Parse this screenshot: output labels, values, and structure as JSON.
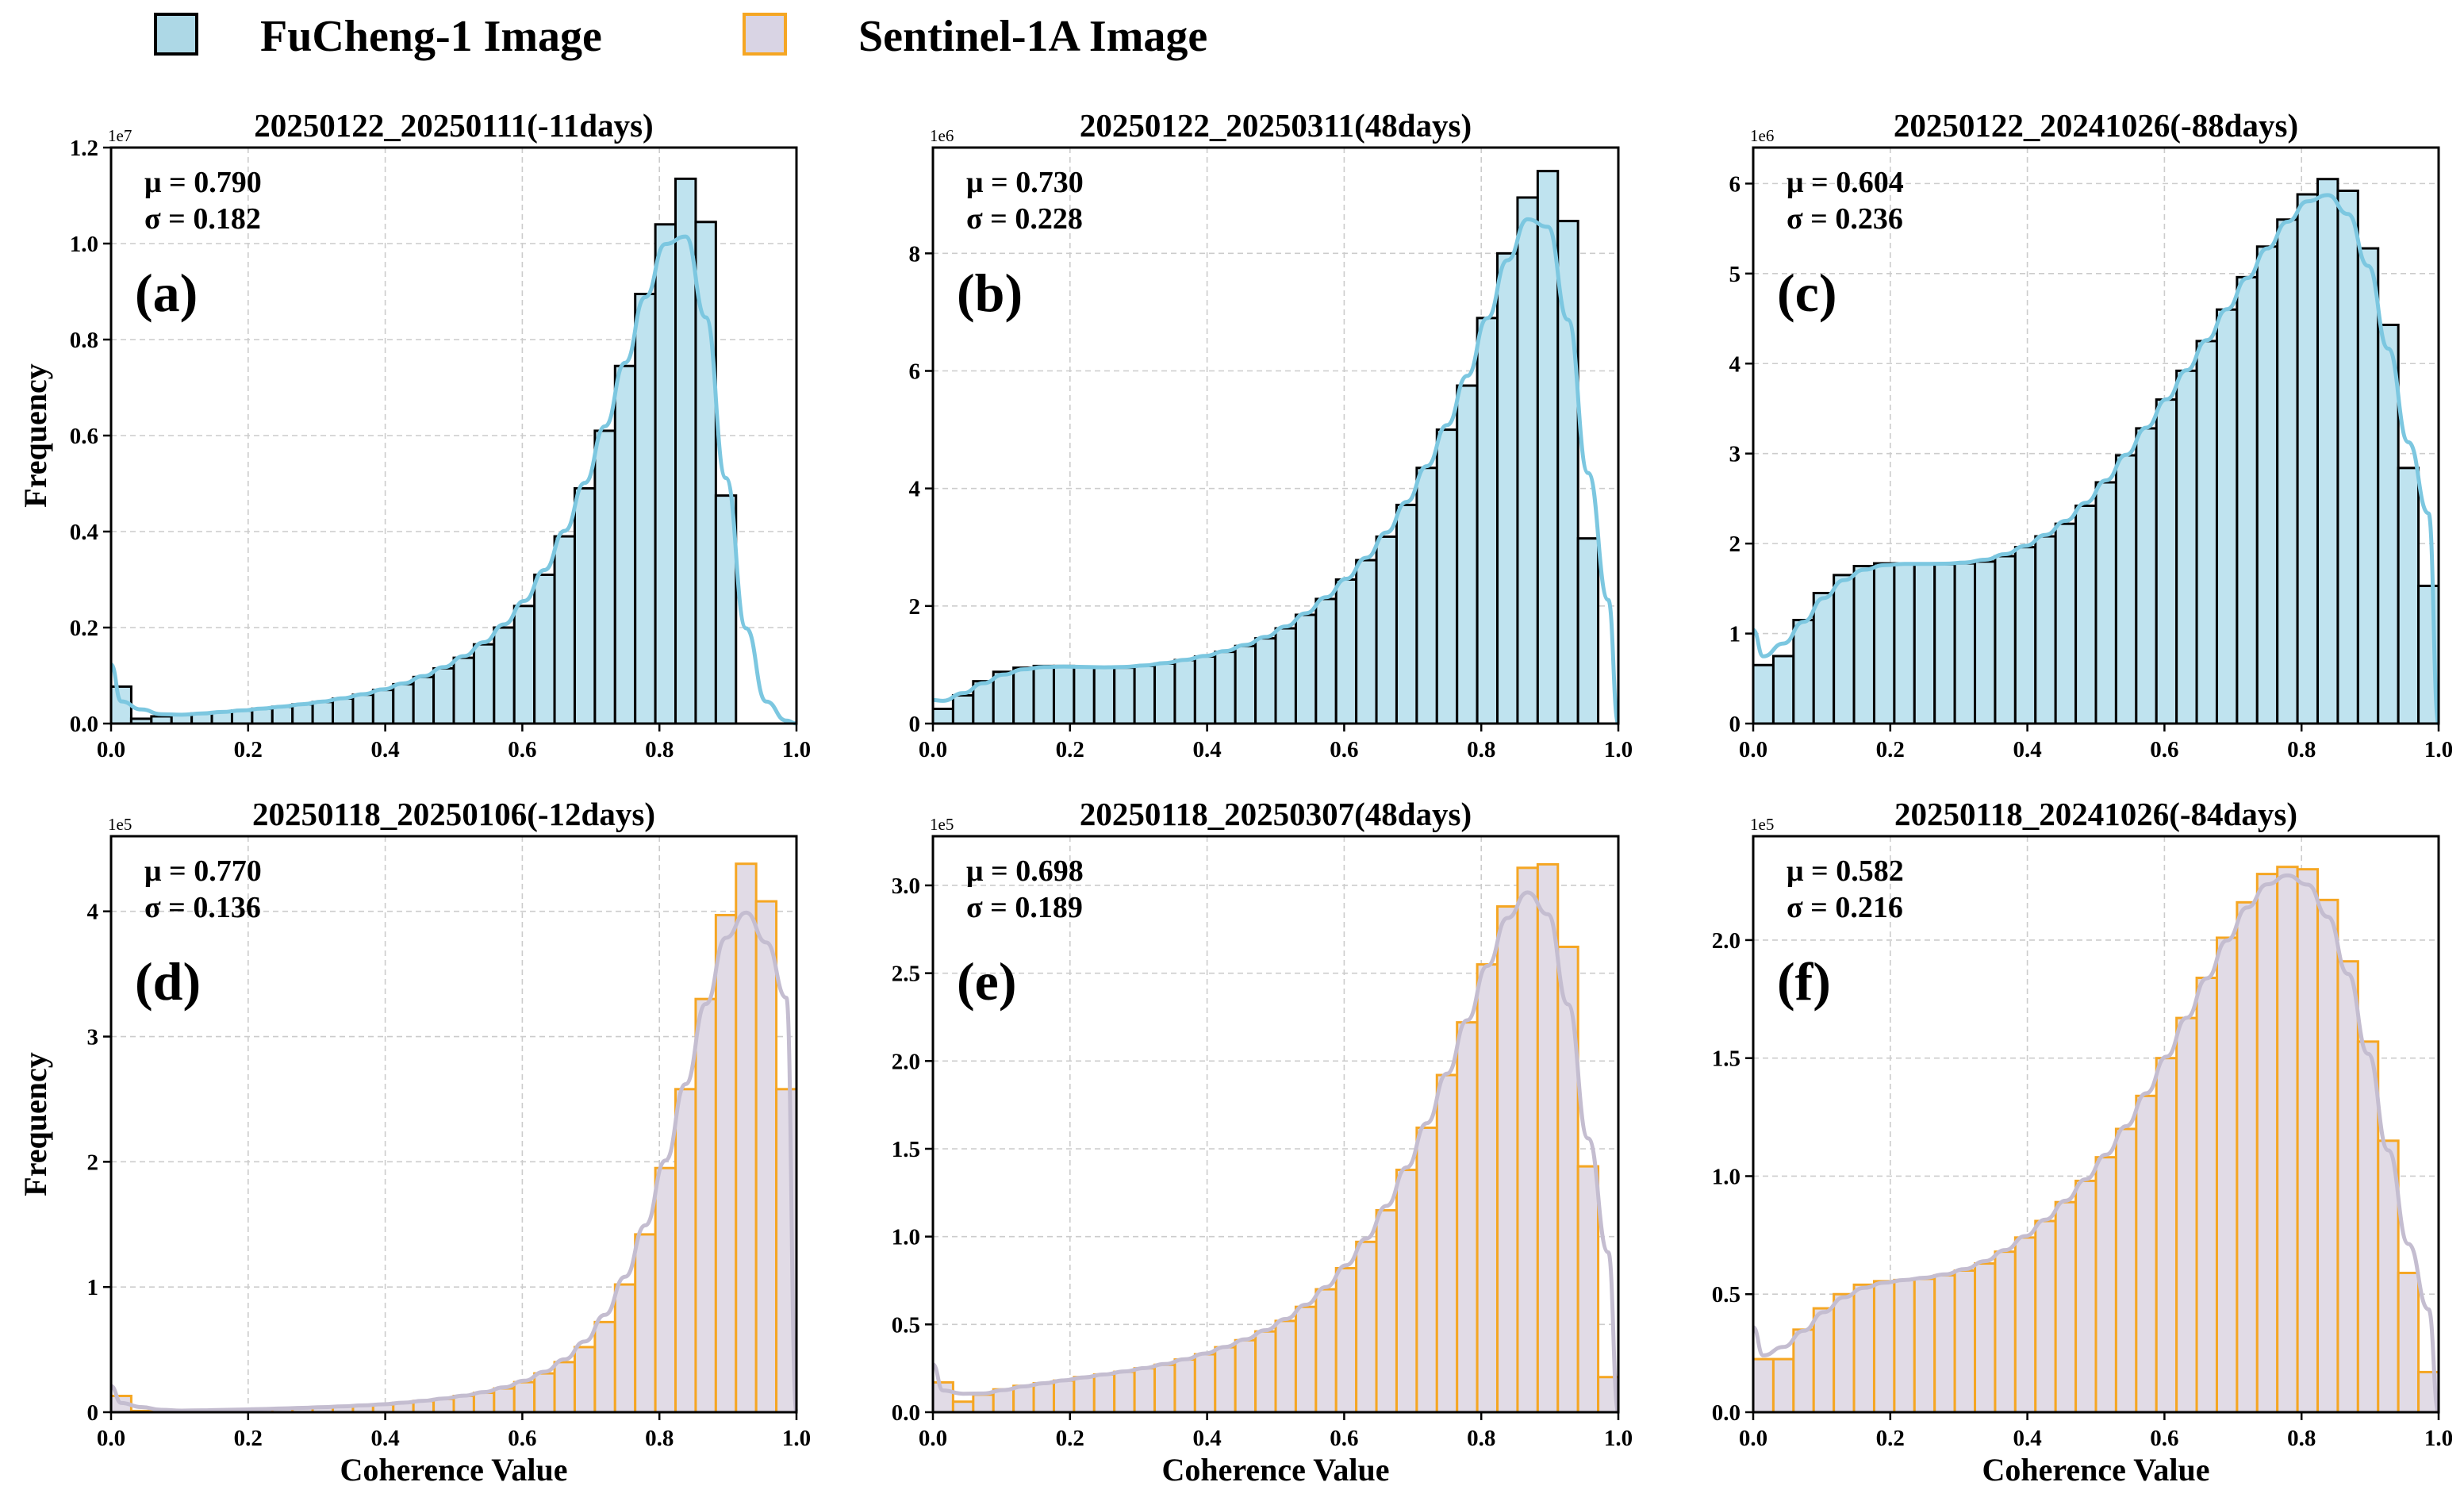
{
  "legend": {
    "fucheng": {
      "label": "FuCheng-1 Image",
      "fill": "#add8e6",
      "edge": "#000000"
    },
    "sentinel": {
      "label": "Sentinel-1A Image",
      "fill": "#d9d4e4",
      "edge": "#f5a623"
    }
  },
  "colors": {
    "fucheng_fill": "#bfe3ef",
    "fucheng_edge": "#000000",
    "fucheng_kde": "#7cc7e0",
    "sentinel_fill": "#e1dbe6",
    "sentinel_edge": "#f5a623",
    "sentinel_kde": "#c4bdd0",
    "grid": "#cccccc"
  },
  "chart_data": [
    {
      "type": "histogram",
      "sensor": "fucheng",
      "title": "20250122_20250111(-11days)",
      "panel_label": "(a)",
      "mu": "μ = 0.790",
      "sigma": "σ = 0.182",
      "scale_label": "1e7",
      "ylabel": "Frequency",
      "xlabel": "",
      "xlim": [
        0,
        1
      ],
      "ylim": [
        0,
        1.2
      ],
      "yticks": [
        0.0,
        0.2,
        0.4,
        0.6,
        0.8,
        1.0,
        1.2
      ],
      "ytick_labels": [
        "0.0",
        "0.2",
        "0.4",
        "0.6",
        "0.8",
        "1.0",
        "1.2"
      ],
      "xticks": [
        0.0,
        0.2,
        0.4,
        0.6,
        0.8,
        1.0
      ],
      "xtick_labels": [
        "0.0",
        "0.2",
        "0.4",
        "0.6",
        "0.8",
        "1.0"
      ],
      "bins": 34,
      "values": [
        0.077,
        0.01,
        0.015,
        0.018,
        0.021,
        0.024,
        0.027,
        0.031,
        0.035,
        0.04,
        0.045,
        0.052,
        0.06,
        0.07,
        0.082,
        0.097,
        0.115,
        0.137,
        0.165,
        0.2,
        0.245,
        0.31,
        0.39,
        0.49,
        0.61,
        0.745,
        0.895,
        1.04,
        1.135,
        1.045,
        0.475,
        0,
        0,
        0
      ]
    },
    {
      "type": "histogram",
      "sensor": "fucheng",
      "title": "20250122_20250311(48days)",
      "panel_label": "(b)",
      "mu": "μ = 0.730",
      "sigma": "σ = 0.228",
      "scale_label": "1e6",
      "ylabel": "",
      "xlabel": "",
      "xlim": [
        0,
        1
      ],
      "ylim": [
        0,
        9.8
      ],
      "yticks": [
        0,
        2,
        4,
        6,
        8
      ],
      "ytick_labels": [
        "0",
        "2",
        "4",
        "6",
        "8"
      ],
      "xticks": [
        0.0,
        0.2,
        0.4,
        0.6,
        0.8,
        1.0
      ],
      "xtick_labels": [
        "0.0",
        "0.2",
        "0.4",
        "0.6",
        "0.8",
        "1.0"
      ],
      "bins": 34,
      "values": [
        0.25,
        0.48,
        0.72,
        0.88,
        0.95,
        0.98,
        0.98,
        0.96,
        0.95,
        0.95,
        0.98,
        1.02,
        1.08,
        1.14,
        1.22,
        1.32,
        1.45,
        1.62,
        1.85,
        2.12,
        2.45,
        2.78,
        3.18,
        3.72,
        4.35,
        5.0,
        5.75,
        6.9,
        8.0,
        8.95,
        9.4,
        8.55,
        3.15,
        0
      ]
    },
    {
      "type": "histogram",
      "sensor": "fucheng",
      "title": "20250122_20241026(-88days)",
      "panel_label": "(c)",
      "mu": "μ = 0.604",
      "sigma": "σ = 0.236",
      "scale_label": "1e6",
      "ylabel": "",
      "xlabel": "",
      "xlim": [
        0,
        1
      ],
      "ylim": [
        0,
        6.4
      ],
      "yticks": [
        0,
        1,
        2,
        3,
        4,
        5,
        6
      ],
      "ytick_labels": [
        "0",
        "1",
        "2",
        "3",
        "4",
        "5",
        "6"
      ],
      "xticks": [
        0.0,
        0.2,
        0.4,
        0.6,
        0.8,
        1.0
      ],
      "xtick_labels": [
        "0.0",
        "0.2",
        "0.4",
        "0.6",
        "0.8",
        "1.0"
      ],
      "bins": 34,
      "values": [
        0.65,
        0.75,
        1.15,
        1.45,
        1.65,
        1.75,
        1.78,
        1.78,
        1.77,
        1.77,
        1.78,
        1.8,
        1.86,
        1.96,
        2.08,
        2.22,
        2.42,
        2.68,
        2.98,
        3.28,
        3.6,
        3.92,
        4.25,
        4.6,
        4.96,
        5.3,
        5.6,
        5.88,
        6.05,
        5.92,
        5.28,
        4.43,
        2.84,
        1.53
      ]
    },
    {
      "type": "histogram",
      "sensor": "sentinel",
      "title": "20250118_20250106(-12days)",
      "panel_label": "(d)",
      "mu": "μ = 0.770",
      "sigma": "σ = 0.136",
      "scale_label": "1e5",
      "ylabel": "Frequency",
      "xlabel": "Coherence Value",
      "xlim": [
        0,
        1
      ],
      "ylim": [
        0,
        4.6
      ],
      "yticks": [
        0,
        1,
        2,
        3,
        4
      ],
      "ytick_labels": [
        "0",
        "1",
        "2",
        "3",
        "4"
      ],
      "xticks": [
        0.0,
        0.2,
        0.4,
        0.6,
        0.8,
        1.0
      ],
      "xtick_labels": [
        "0.0",
        "0.2",
        "0.4",
        "0.6",
        "0.8",
        "1.0"
      ],
      "bins": 34,
      "values": [
        0.13,
        0.01,
        0.01,
        0.01,
        0.015,
        0.02,
        0.02,
        0.025,
        0.03,
        0.035,
        0.04,
        0.045,
        0.055,
        0.06,
        0.075,
        0.09,
        0.105,
        0.13,
        0.155,
        0.19,
        0.24,
        0.31,
        0.4,
        0.52,
        0.72,
        1.02,
        1.42,
        1.95,
        2.58,
        3.3,
        3.97,
        4.38,
        4.08,
        2.58
      ]
    },
    {
      "type": "histogram",
      "sensor": "sentinel",
      "title": "20250118_20250307(48days)",
      "panel_label": "(e)",
      "mu": "μ = 0.698",
      "sigma": "σ = 0.189",
      "scale_label": "1e5",
      "ylabel": "",
      "xlabel": "Coherence Value",
      "xlim": [
        0,
        1
      ],
      "ylim": [
        0,
        3.28
      ],
      "yticks": [
        0.0,
        0.5,
        1.0,
        1.5,
        2.0,
        2.5,
        3.0
      ],
      "ytick_labels": [
        "0.0",
        "0.5",
        "1.0",
        "1.5",
        "2.0",
        "2.5",
        "3.0"
      ],
      "xticks": [
        0.0,
        0.2,
        0.4,
        0.6,
        0.8,
        1.0
      ],
      "xtick_labels": [
        "0.0",
        "0.2",
        "0.4",
        "0.6",
        "0.8",
        "1.0"
      ],
      "bins": 34,
      "values": [
        0.17,
        0.06,
        0.1,
        0.13,
        0.15,
        0.165,
        0.18,
        0.2,
        0.215,
        0.23,
        0.25,
        0.27,
        0.3,
        0.33,
        0.37,
        0.41,
        0.46,
        0.52,
        0.6,
        0.7,
        0.82,
        0.97,
        1.15,
        1.38,
        1.62,
        1.92,
        2.22,
        2.55,
        2.88,
        3.1,
        3.12,
        2.65,
        1.4,
        0.2
      ]
    },
    {
      "type": "histogram",
      "sensor": "sentinel",
      "title": "20250118_20241026(-84days)",
      "panel_label": "(f)",
      "mu": "μ = 0.582",
      "sigma": "σ = 0.216",
      "scale_label": "1e5",
      "ylabel": "",
      "xlabel": "Coherence Value",
      "xlim": [
        0,
        1
      ],
      "ylim": [
        0,
        2.44
      ],
      "yticks": [
        0.0,
        0.5,
        1.0,
        1.5,
        2.0
      ],
      "ytick_labels": [
        "0.0",
        "0.5",
        "1.0",
        "1.5",
        "2.0"
      ],
      "xticks": [
        0.0,
        0.2,
        0.4,
        0.6,
        0.8,
        1.0
      ],
      "xtick_labels": [
        "0.0",
        "0.2",
        "0.4",
        "0.6",
        "0.8",
        "1.0"
      ],
      "bins": 34,
      "values": [
        0.225,
        0.225,
        0.35,
        0.44,
        0.5,
        0.54,
        0.555,
        0.56,
        0.565,
        0.58,
        0.6,
        0.63,
        0.68,
        0.74,
        0.81,
        0.89,
        0.98,
        1.08,
        1.2,
        1.34,
        1.5,
        1.67,
        1.84,
        2.01,
        2.16,
        2.28,
        2.31,
        2.3,
        2.17,
        1.91,
        1.57,
        1.15,
        0.59,
        0.17
      ]
    }
  ]
}
